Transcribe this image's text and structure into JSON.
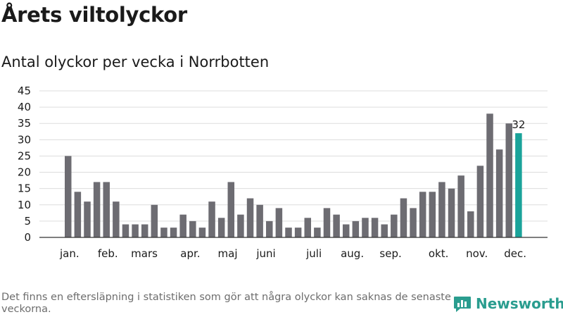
{
  "header": {
    "title": "Årets viltolyckor",
    "subtitle": "Antal olyckor per vecka i Norrbotten"
  },
  "footer": {
    "note": "Det finns en eftersläpning i statistiken som gör att några olyckor kan saknas de senaste veckorna.",
    "brand": "Newsworthy"
  },
  "colors": {
    "bar": "#6d6c72",
    "highlight": "#1aa39a",
    "grid": "#dddddd",
    "axis": "#333333",
    "brand": "#2a9d8f"
  },
  "chart_data": {
    "type": "bar",
    "title": "Antal olyckor per vecka i Norrbotten",
    "xlabel": "",
    "ylabel": "",
    "ylim": [
      0,
      45
    ],
    "yticks": [
      0,
      5,
      10,
      15,
      20,
      25,
      30,
      35,
      40,
      45
    ],
    "grid": true,
    "values": [
      25,
      14,
      11,
      17,
      17,
      11,
      4,
      4,
      4,
      10,
      3,
      3,
      7,
      5,
      3,
      11,
      6,
      17,
      7,
      12,
      10,
      5,
      9,
      3,
      3,
      6,
      3,
      9,
      7,
      4,
      5,
      6,
      6,
      4,
      7,
      12,
      9,
      14,
      14,
      17,
      15,
      19,
      8,
      22,
      38,
      27,
      35,
      32
    ],
    "highlight_last": true,
    "last_label": "32",
    "months": [
      {
        "label": "jan.",
        "bar": 0.5
      },
      {
        "label": "feb.",
        "bar": 4.5
      },
      {
        "label": "mars",
        "bar": 8.3
      },
      {
        "label": "apr.",
        "bar": 13.1
      },
      {
        "label": "maj",
        "bar": 17.0
      },
      {
        "label": "juni",
        "bar": 21.0
      },
      {
        "label": "juli",
        "bar": 26.0
      },
      {
        "label": "aug.",
        "bar": 30.0
      },
      {
        "label": "sep.",
        "bar": 34.0
      },
      {
        "label": "okt.",
        "bar": 39.0
      },
      {
        "label": "nov.",
        "bar": 43.0
      },
      {
        "label": "dec.",
        "bar": 47.0
      }
    ]
  }
}
